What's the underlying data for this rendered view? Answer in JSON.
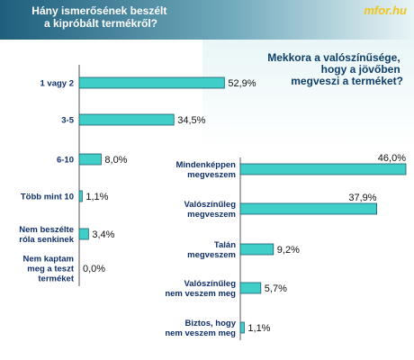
{
  "brand": "mfor.hu",
  "colors": {
    "header_start": "#1f5f7d",
    "header_end": "#e9f4f6",
    "panel_start": "#e9f6f7",
    "panel_end": "#ffffff",
    "bar": "#3fcfc8",
    "bar_border": "#1e5a6a"
  },
  "chart_data": [
    {
      "type": "bar",
      "orientation": "horizontal",
      "title_lines": [
        "Hány ismerősének beszélt",
        "a kipróbált termékről?"
      ],
      "categories": [
        [
          "1 vagy 2"
        ],
        [
          "3-5"
        ],
        [
          "6-10"
        ],
        [
          "Több mint 10"
        ],
        [
          "Nem beszélte",
          "róla senkinek"
        ],
        [
          "Nem kaptam",
          "meg a teszt",
          "terméket"
        ]
      ],
      "values": [
        52.9,
        34.5,
        8.0,
        1.1,
        3.4,
        0.0
      ],
      "value_labels": [
        "52,9%",
        "34,5%",
        "8,0%",
        "1,1%",
        "3,4%",
        "0,0%"
      ],
      "xlim": [
        0,
        60
      ],
      "grid": false
    },
    {
      "type": "bar",
      "orientation": "horizontal",
      "title_lines": [
        "Mekkora a valószínűsége,",
        "hogy a jövőben",
        "megveszi a terméket?"
      ],
      "categories": [
        [
          "Mindenképpen",
          "megveszem"
        ],
        [
          "Valószínűleg",
          "megveszem"
        ],
        [
          "Talán",
          "megveszem"
        ],
        [
          "Valószínűleg",
          "nem veszem meg"
        ],
        [
          "Biztos, hogy",
          "nem veszem meg"
        ]
      ],
      "values": [
        46.0,
        37.9,
        9.2,
        5.7,
        1.1
      ],
      "value_labels": [
        "46,0%",
        "37,9%",
        "9,2%",
        "5,7%",
        "1,1%"
      ],
      "xlim": [
        0,
        46
      ],
      "grid": false
    }
  ]
}
